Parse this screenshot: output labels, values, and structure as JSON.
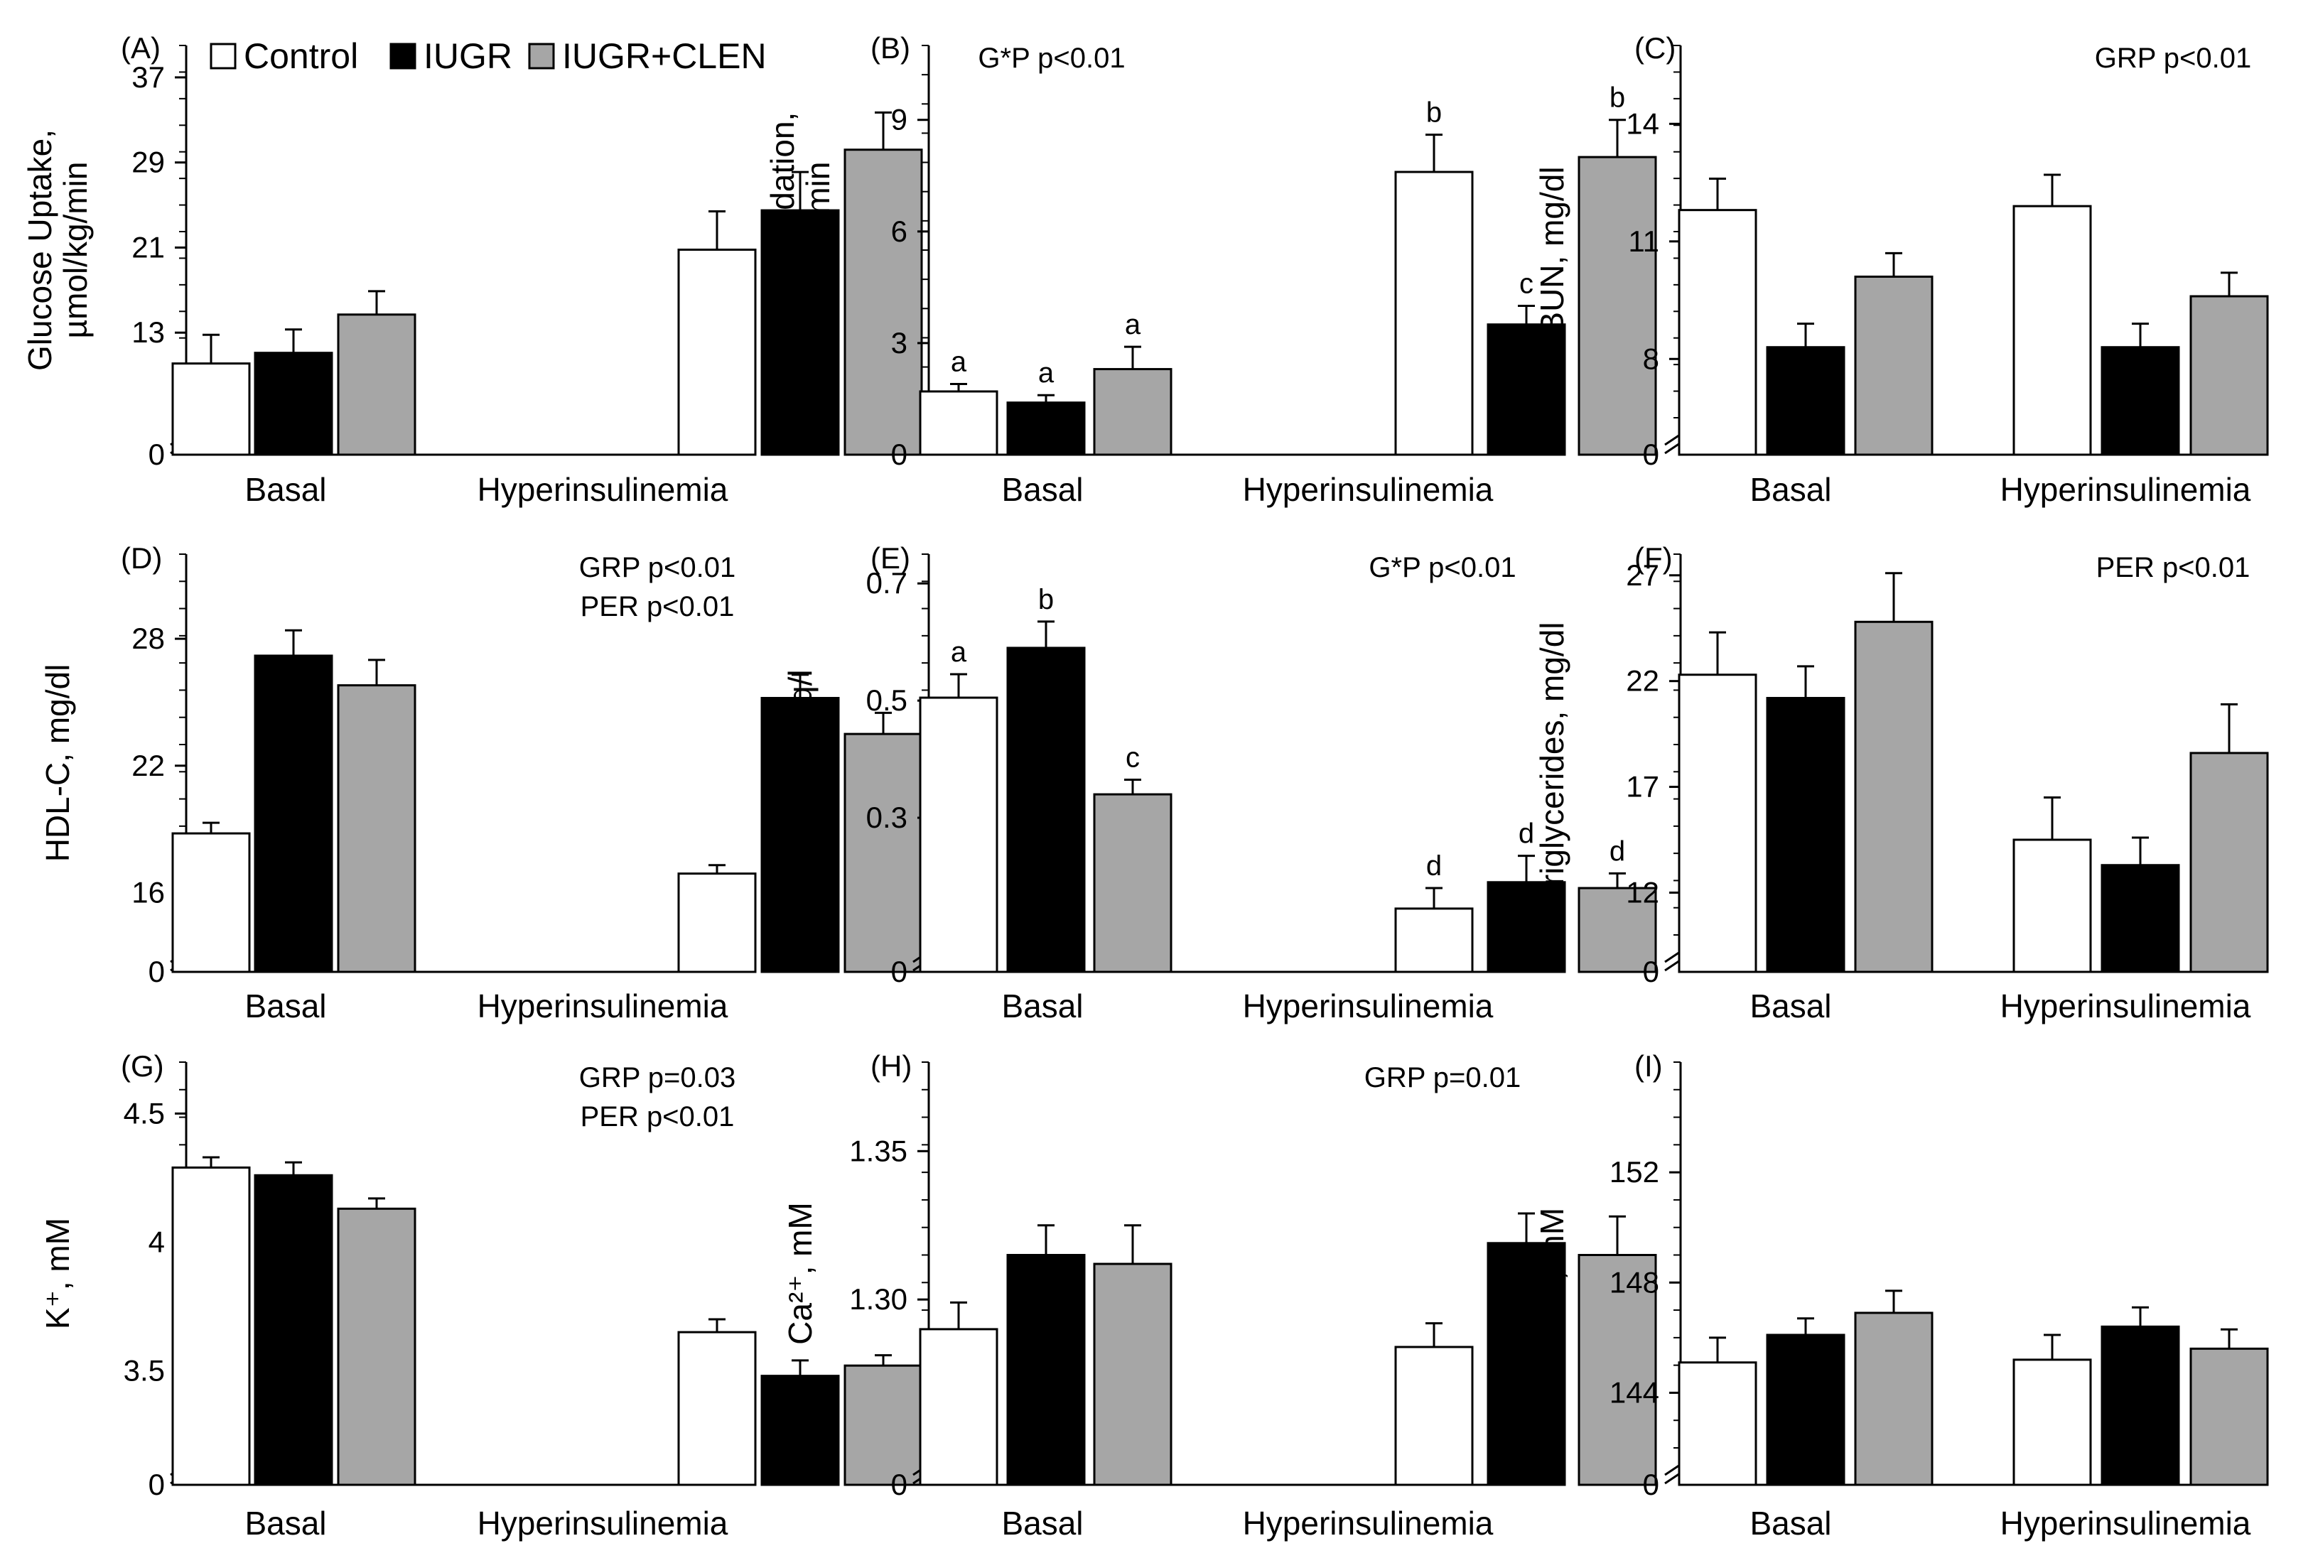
{
  "legend": {
    "items": [
      {
        "label": "Control",
        "color": "#ffffff"
      },
      {
        "label": "IUGR",
        "color": "#000000"
      },
      {
        "label": "IUGR+CLEN",
        "color": "#a6a6a6"
      }
    ]
  },
  "chart_data": [
    {
      "type": "bar",
      "panel": "(A)",
      "ylabel": [
        "Glucose Uptake,",
        "µmol/kg/min"
      ],
      "categories": [
        "Basal",
        "Hyperinsulinemia"
      ],
      "ylim": [
        5,
        40
      ],
      "axis_break": true,
      "yticks": [
        13,
        21,
        29,
        37
      ],
      "series": [
        {
          "name": "Control",
          "values": [
            10.1,
            20.8
          ],
          "errors": [
            2.7,
            3.6
          ]
        },
        {
          "name": "IUGR",
          "values": [
            11.1,
            24.5
          ],
          "errors": [
            2.2,
            3.6
          ]
        },
        {
          "name": "IUGR+CLEN",
          "values": [
            14.7,
            30.2
          ],
          "errors": [
            2.2,
            3.5
          ]
        }
      ],
      "annotations": [],
      "letters": []
    },
    {
      "type": "bar",
      "panel": "(B)",
      "ylabel": [
        "Glucose Oxidation,",
        "µmol/kg/min"
      ],
      "categories": [
        "Basal",
        "Hyperinsulinemia"
      ],
      "ylim": [
        0,
        11
      ],
      "axis_break": false,
      "yticks": [
        0,
        3,
        6,
        9
      ],
      "series": [
        {
          "name": "Control",
          "values": [
            1.7,
            7.6
          ],
          "errors": [
            0.2,
            1.0
          ]
        },
        {
          "name": "IUGR",
          "values": [
            1.4,
            3.5
          ],
          "errors": [
            0.2,
            0.5
          ]
        },
        {
          "name": "IUGR+CLEN",
          "values": [
            2.3,
            8.0
          ],
          "errors": [
            0.6,
            1.0
          ]
        }
      ],
      "annotations": [
        "G*P p<0.01"
      ],
      "letters": [
        [
          "a",
          "b"
        ],
        [
          "a",
          "c"
        ],
        [
          "a",
          "b"
        ]
      ]
    },
    {
      "type": "bar",
      "panel": "(C)",
      "ylabel": [
        "BUN, mg/dl"
      ],
      "categories": [
        "Basal",
        "Hyperinsulinemia"
      ],
      "ylim": [
        6.5,
        16
      ],
      "axis_break": true,
      "yticks": [
        8,
        11,
        14
      ],
      "series": [
        {
          "name": "Control",
          "values": [
            11.8,
            11.9
          ],
          "errors": [
            0.8,
            0.8
          ]
        },
        {
          "name": "IUGR",
          "values": [
            8.3,
            8.3
          ],
          "errors": [
            0.6,
            0.6
          ]
        },
        {
          "name": "IUGR+CLEN",
          "values": [
            10.1,
            9.6
          ],
          "errors": [
            0.6,
            0.6
          ]
        }
      ],
      "annotations": [
        "GRP p<0.01"
      ],
      "letters": []
    },
    {
      "type": "bar",
      "panel": "(D)",
      "ylabel": [
        "HDL-C, mg/dl"
      ],
      "categories": [
        "Basal",
        "Hyperinsulinemia"
      ],
      "ylim": [
        14,
        32
      ],
      "axis_break": true,
      "yticks": [
        16,
        22,
        28
      ],
      "series": [
        {
          "name": "Control",
          "values": [
            18.8,
            16.9
          ],
          "errors": [
            0.5,
            0.4
          ]
        },
        {
          "name": "IUGR",
          "values": [
            27.2,
            25.2
          ],
          "errors": [
            1.2,
            1.1
          ]
        },
        {
          "name": "IUGR+CLEN",
          "values": [
            25.8,
            23.5
          ],
          "errors": [
            1.2,
            1.0
          ]
        }
      ],
      "annotations": [
        "GRP p<0.01",
        "PER p<0.01"
      ],
      "letters": []
    },
    {
      "type": "bar",
      "panel": "(E)",
      "ylabel": [
        "NEFA, mEq/l"
      ],
      "categories": [
        "Basal",
        "Hyperinsulinemia"
      ],
      "ylim": [
        0.1,
        0.75
      ],
      "axis_break": true,
      "yticks": [
        0.3,
        0.5,
        0.7
      ],
      "series": [
        {
          "name": "Control",
          "values": [
            0.505,
            0.145
          ],
          "errors": [
            0.04,
            0.035
          ]
        },
        {
          "name": "IUGR",
          "values": [
            0.59,
            0.19
          ],
          "errors": [
            0.045,
            0.045
          ]
        },
        {
          "name": "IUGR+CLEN",
          "values": [
            0.34,
            0.18
          ],
          "errors": [
            0.025,
            0.025
          ]
        }
      ],
      "annotations": [
        "G*P p<0.01"
      ],
      "letters": [
        [
          "a",
          "d"
        ],
        [
          "b",
          "d"
        ],
        [
          "c",
          "d"
        ]
      ]
    },
    {
      "type": "bar",
      "panel": "(F)",
      "ylabel": [
        "Triglycerides, mg/dl"
      ],
      "categories": [
        "Basal",
        "Hyperinsulinemia"
      ],
      "ylim": [
        10,
        28
      ],
      "axis_break": true,
      "yticks": [
        12,
        17,
        22,
        27
      ],
      "series": [
        {
          "name": "Control",
          "values": [
            22.3,
            14.5
          ],
          "errors": [
            2.0,
            2.0
          ]
        },
        {
          "name": "IUGR",
          "values": [
            21.2,
            13.3
          ],
          "errors": [
            1.5,
            1.3
          ]
        },
        {
          "name": "IUGR+CLEN",
          "values": [
            24.8,
            18.6
          ],
          "errors": [
            2.3,
            2.3
          ]
        }
      ],
      "annotations": [
        "PER p<0.01"
      ],
      "letters": []
    },
    {
      "type": "bar",
      "panel": "(G)",
      "ylabel": [
        "K⁺, mM"
      ],
      "categories": [
        "Basal",
        "Hyperinsulinemia"
      ],
      "ylim": [
        3.2,
        4.7
      ],
      "axis_break": true,
      "yticks": [
        3.5,
        4.0,
        4.5
      ],
      "series": [
        {
          "name": "Control",
          "values": [
            4.29,
            3.65
          ],
          "errors": [
            0.04,
            0.05
          ]
        },
        {
          "name": "IUGR",
          "values": [
            4.26,
            3.48
          ],
          "errors": [
            0.05,
            0.06
          ]
        },
        {
          "name": "IUGR+CLEN",
          "values": [
            4.13,
            3.52
          ],
          "errors": [
            0.04,
            0.04
          ]
        }
      ],
      "annotations": [
        "GRP p=0.03",
        "PER p<0.01"
      ],
      "letters": []
    },
    {
      "type": "bar",
      "panel": "(H)",
      "ylabel": [
        "Ca²⁺, mM"
      ],
      "categories": [
        "Basal",
        "Hyperinsulinemia"
      ],
      "ylim": [
        1.25,
        1.38
      ],
      "axis_break": true,
      "yticks": [
        1.3,
        1.35
      ],
      "series": [
        {
          "name": "Control",
          "values": [
            1.29,
            1.284
          ],
          "errors": [
            0.009,
            0.008
          ]
        },
        {
          "name": "IUGR",
          "values": [
            1.315,
            1.319
          ],
          "errors": [
            0.01,
            0.01
          ]
        },
        {
          "name": "IUGR+CLEN",
          "values": [
            1.312,
            1.315
          ],
          "errors": [
            0.013,
            0.013
          ]
        }
      ],
      "annotations": [
        "GRP p=0.01"
      ],
      "letters": []
    },
    {
      "type": "bar",
      "panel": "(I)",
      "ylabel": [
        "Na⁺, mM"
      ],
      "categories": [
        "Basal",
        "Hyperinsulinemia"
      ],
      "ylim": [
        142,
        156
      ],
      "axis_break": true,
      "yticks": [
        144,
        148,
        152
      ],
      "series": [
        {
          "name": "Control",
          "values": [
            145.1,
            145.2
          ],
          "errors": [
            0.9,
            0.9
          ]
        },
        {
          "name": "IUGR",
          "values": [
            146.1,
            146.4
          ],
          "errors": [
            0.6,
            0.7
          ]
        },
        {
          "name": "IUGR+CLEN",
          "values": [
            146.9,
            145.6
          ],
          "errors": [
            0.8,
            0.7
          ]
        }
      ],
      "annotations": [],
      "letters": []
    }
  ]
}
